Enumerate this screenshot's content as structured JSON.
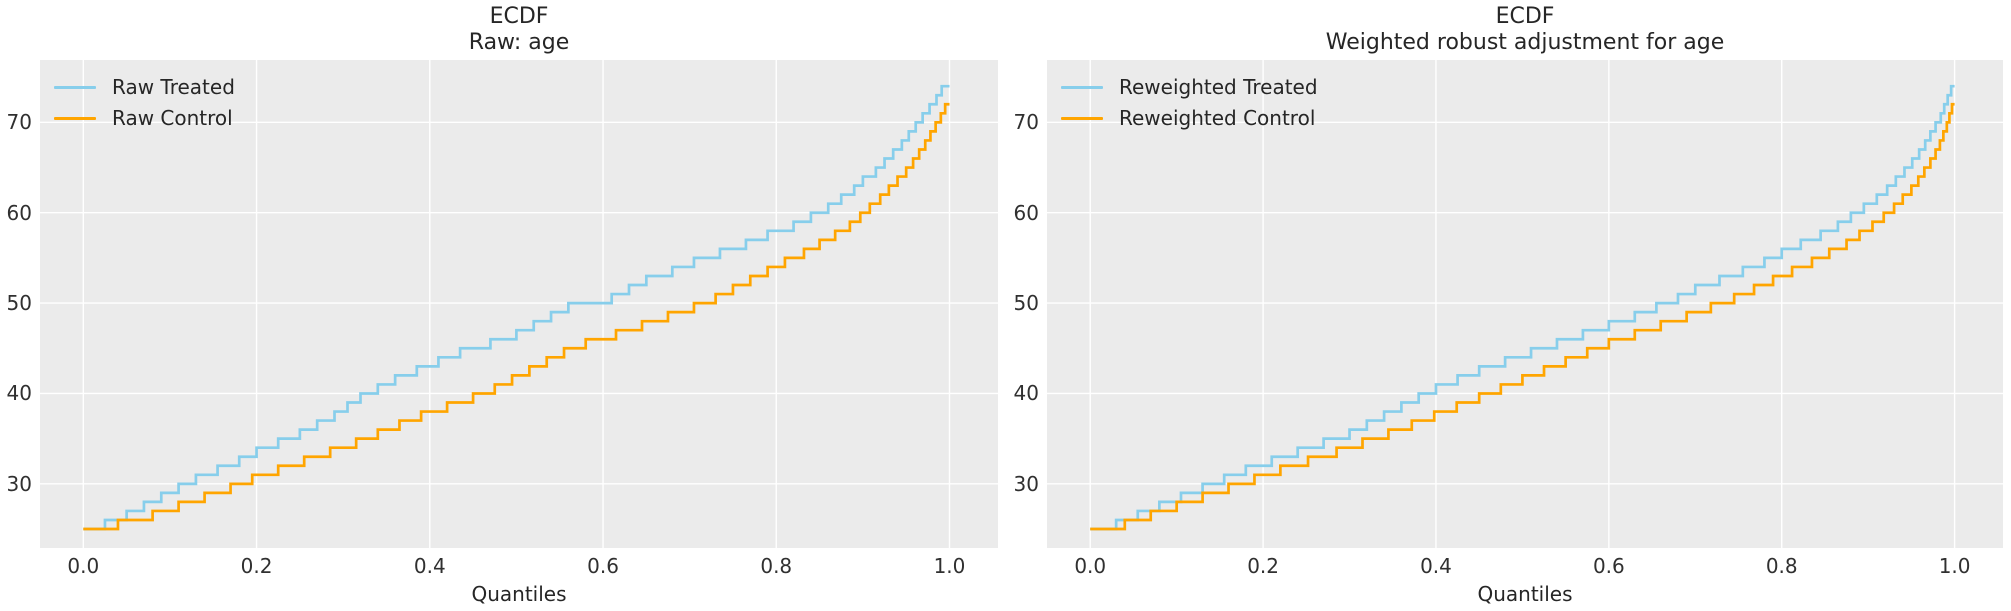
{
  "figure": {
    "bg_color": "#ffffff",
    "plot_bg_color": "#ebebeb",
    "grid_color": "#ffffff",
    "title_color": "#262626",
    "tick_color": "#303030",
    "treated_color": "#87ceeb",
    "control_color": "#ffa500"
  },
  "chart_data": [
    {
      "type": "line",
      "step_style": "post",
      "title": "ECDF",
      "subtitle": "Raw: age",
      "xlabel": "Quantiles",
      "grid": true,
      "legend_position": "upper-left",
      "xlim": [
        -0.05,
        1.056
      ],
      "ylim": [
        22.9,
        76.9
      ],
      "xticks": [
        {
          "v": 0.0,
          "label": "0.0"
        },
        {
          "v": 0.2,
          "label": "0.2"
        },
        {
          "v": 0.4,
          "label": "0.4"
        },
        {
          "v": 0.6,
          "label": "0.6"
        },
        {
          "v": 0.8,
          "label": "0.8"
        },
        {
          "v": 1.0,
          "label": "1.0"
        }
      ],
      "yticks": [
        {
          "v": 30,
          "label": "30"
        },
        {
          "v": 40,
          "label": "40"
        },
        {
          "v": 50,
          "label": "50"
        },
        {
          "v": 60,
          "label": "60"
        },
        {
          "v": 70,
          "label": "70"
        }
      ],
      "legend": [
        {
          "name": "Raw Treated",
          "color": "#87ceeb"
        },
        {
          "name": "Raw Control",
          "color": "#ffa500"
        }
      ],
      "series": [
        {
          "name": "Raw Treated",
          "color": "#87ceeb",
          "points": [
            [
              0,
              25
            ],
            [
              0.025,
              26
            ],
            [
              0.05,
              27
            ],
            [
              0.07,
              28
            ],
            [
              0.09,
              29
            ],
            [
              0.11,
              30
            ],
            [
              0.13,
              31
            ],
            [
              0.155,
              32
            ],
            [
              0.18,
              33
            ],
            [
              0.2,
              34
            ],
            [
              0.225,
              35
            ],
            [
              0.25,
              36
            ],
            [
              0.27,
              37
            ],
            [
              0.29,
              38
            ],
            [
              0.305,
              39
            ],
            [
              0.32,
              40
            ],
            [
              0.34,
              41
            ],
            [
              0.36,
              42
            ],
            [
              0.385,
              43
            ],
            [
              0.41,
              44
            ],
            [
              0.435,
              45
            ],
            [
              0.47,
              46
            ],
            [
              0.5,
              47
            ],
            [
              0.52,
              48
            ],
            [
              0.54,
              49
            ],
            [
              0.56,
              50
            ],
            [
              0.61,
              51
            ],
            [
              0.63,
              52
            ],
            [
              0.65,
              53
            ],
            [
              0.68,
              54
            ],
            [
              0.705,
              55
            ],
            [
              0.735,
              56
            ],
            [
              0.765,
              57
            ],
            [
              0.79,
              58
            ],
            [
              0.82,
              59
            ],
            [
              0.84,
              60
            ],
            [
              0.86,
              61
            ],
            [
              0.875,
              62
            ],
            [
              0.89,
              63
            ],
            [
              0.9,
              64
            ],
            [
              0.915,
              65
            ],
            [
              0.925,
              66
            ],
            [
              0.935,
              67
            ],
            [
              0.945,
              68
            ],
            [
              0.953,
              69
            ],
            [
              0.961,
              70
            ],
            [
              0.969,
              71
            ],
            [
              0.977,
              72
            ],
            [
              0.985,
              73
            ],
            [
              0.991,
              74
            ],
            [
              1,
              74
            ]
          ]
        },
        {
          "name": "Raw Control",
          "color": "#ffa500",
          "points": [
            [
              0,
              25
            ],
            [
              0.04,
              26
            ],
            [
              0.08,
              27
            ],
            [
              0.11,
              28
            ],
            [
              0.14,
              29
            ],
            [
              0.17,
              30
            ],
            [
              0.195,
              31
            ],
            [
              0.225,
              32
            ],
            [
              0.255,
              33
            ],
            [
              0.285,
              34
            ],
            [
              0.315,
              35
            ],
            [
              0.34,
              36
            ],
            [
              0.365,
              37
            ],
            [
              0.39,
              38
            ],
            [
              0.42,
              39
            ],
            [
              0.45,
              40
            ],
            [
              0.475,
              41
            ],
            [
              0.495,
              42
            ],
            [
              0.515,
              43
            ],
            [
              0.535,
              44
            ],
            [
              0.555,
              45
            ],
            [
              0.58,
              46
            ],
            [
              0.615,
              47
            ],
            [
              0.645,
              48
            ],
            [
              0.675,
              49
            ],
            [
              0.705,
              50
            ],
            [
              0.73,
              51
            ],
            [
              0.75,
              52
            ],
            [
              0.77,
              53
            ],
            [
              0.79,
              54
            ],
            [
              0.81,
              55
            ],
            [
              0.832,
              56
            ],
            [
              0.85,
              57
            ],
            [
              0.868,
              58
            ],
            [
              0.885,
              59
            ],
            [
              0.897,
              60
            ],
            [
              0.908,
              61
            ],
            [
              0.92,
              62
            ],
            [
              0.93,
              63
            ],
            [
              0.94,
              64
            ],
            [
              0.95,
              65
            ],
            [
              0.958,
              66
            ],
            [
              0.965,
              67
            ],
            [
              0.972,
              68
            ],
            [
              0.978,
              69
            ],
            [
              0.984,
              70
            ],
            [
              0.99,
              71
            ],
            [
              0.995,
              72
            ],
            [
              1,
              72
            ]
          ]
        }
      ]
    },
    {
      "type": "line",
      "step_style": "post",
      "title": "ECDF",
      "subtitle": "Weighted robust adjustment for age",
      "xlabel": "Quantiles",
      "grid": true,
      "legend_position": "upper-left",
      "xlim": [
        -0.05,
        1.056
      ],
      "ylim": [
        22.9,
        76.9
      ],
      "xticks": [
        {
          "v": 0.0,
          "label": "0.0"
        },
        {
          "v": 0.2,
          "label": "0.2"
        },
        {
          "v": 0.4,
          "label": "0.4"
        },
        {
          "v": 0.6,
          "label": "0.6"
        },
        {
          "v": 0.8,
          "label": "0.8"
        },
        {
          "v": 1.0,
          "label": "1.0"
        }
      ],
      "yticks": [
        {
          "v": 30,
          "label": "30"
        },
        {
          "v": 40,
          "label": "40"
        },
        {
          "v": 50,
          "label": "50"
        },
        {
          "v": 60,
          "label": "60"
        },
        {
          "v": 70,
          "label": "70"
        }
      ],
      "legend": [
        {
          "name": "Reweighted Treated",
          "color": "#87ceeb"
        },
        {
          "name": "Reweighted Control",
          "color": "#ffa500"
        }
      ],
      "series": [
        {
          "name": "Reweighted Treated",
          "color": "#87ceeb",
          "points": [
            [
              0,
              25
            ],
            [
              0.03,
              26
            ],
            [
              0.055,
              27
            ],
            [
              0.08,
              28
            ],
            [
              0.105,
              29
            ],
            [
              0.13,
              30
            ],
            [
              0.155,
              31
            ],
            [
              0.18,
              32
            ],
            [
              0.21,
              33
            ],
            [
              0.24,
              34
            ],
            [
              0.27,
              35
            ],
            [
              0.3,
              36
            ],
            [
              0.32,
              37
            ],
            [
              0.34,
              38
            ],
            [
              0.36,
              39
            ],
            [
              0.38,
              40
            ],
            [
              0.4,
              41
            ],
            [
              0.425,
              42
            ],
            [
              0.45,
              43
            ],
            [
              0.48,
              44
            ],
            [
              0.51,
              45
            ],
            [
              0.54,
              46
            ],
            [
              0.57,
              47
            ],
            [
              0.6,
              48
            ],
            [
              0.63,
              49
            ],
            [
              0.655,
              50
            ],
            [
              0.68,
              51
            ],
            [
              0.7,
              52
            ],
            [
              0.728,
              53
            ],
            [
              0.755,
              54
            ],
            [
              0.78,
              55
            ],
            [
              0.8,
              56
            ],
            [
              0.822,
              57
            ],
            [
              0.845,
              58
            ],
            [
              0.865,
              59
            ],
            [
              0.88,
              60
            ],
            [
              0.895,
              61
            ],
            [
              0.91,
              62
            ],
            [
              0.922,
              63
            ],
            [
              0.932,
              64
            ],
            [
              0.942,
              65
            ],
            [
              0.951,
              66
            ],
            [
              0.959,
              67
            ],
            [
              0.966,
              68
            ],
            [
              0.972,
              69
            ],
            [
              0.978,
              70
            ],
            [
              0.984,
              71
            ],
            [
              0.988,
              72
            ],
            [
              0.992,
              73
            ],
            [
              0.996,
              74
            ],
            [
              1,
              74
            ]
          ]
        },
        {
          "name": "Reweighted Control",
          "color": "#ffa500",
          "points": [
            [
              0,
              25
            ],
            [
              0.04,
              26
            ],
            [
              0.07,
              27
            ],
            [
              0.1,
              28
            ],
            [
              0.13,
              29
            ],
            [
              0.16,
              30
            ],
            [
              0.19,
              31
            ],
            [
              0.22,
              32
            ],
            [
              0.252,
              33
            ],
            [
              0.285,
              34
            ],
            [
              0.315,
              35
            ],
            [
              0.345,
              36
            ],
            [
              0.372,
              37
            ],
            [
              0.398,
              38
            ],
            [
              0.424,
              39
            ],
            [
              0.45,
              40
            ],
            [
              0.475,
              41
            ],
            [
              0.5,
              42
            ],
            [
              0.525,
              43
            ],
            [
              0.55,
              44
            ],
            [
              0.575,
              45
            ],
            [
              0.6,
              46
            ],
            [
              0.63,
              47
            ],
            [
              0.66,
              48
            ],
            [
              0.69,
              49
            ],
            [
              0.718,
              50
            ],
            [
              0.745,
              51
            ],
            [
              0.768,
              52
            ],
            [
              0.79,
              53
            ],
            [
              0.812,
              54
            ],
            [
              0.835,
              55
            ],
            [
              0.855,
              56
            ],
            [
              0.875,
              57
            ],
            [
              0.89,
              58
            ],
            [
              0.905,
              59
            ],
            [
              0.918,
              60
            ],
            [
              0.93,
              61
            ],
            [
              0.94,
              62
            ],
            [
              0.95,
              63
            ],
            [
              0.958,
              64
            ],
            [
              0.965,
              65
            ],
            [
              0.972,
              66
            ],
            [
              0.978,
              67
            ],
            [
              0.983,
              68
            ],
            [
              0.987,
              69
            ],
            [
              0.991,
              70
            ],
            [
              0.994,
              71
            ],
            [
              0.997,
              72
            ],
            [
              1,
              72
            ]
          ]
        }
      ]
    }
  ]
}
